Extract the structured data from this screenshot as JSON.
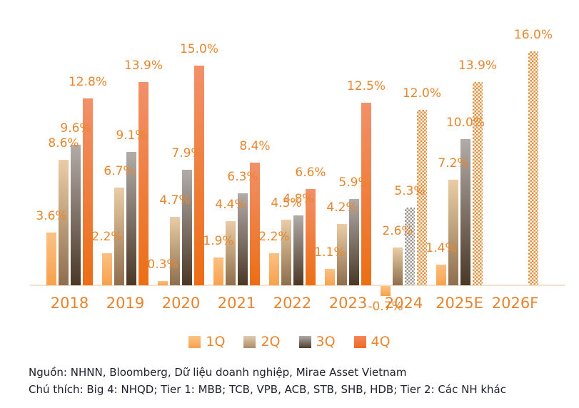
{
  "chart_data": {
    "type": "bar",
    "title": "",
    "xlabel": "",
    "ylabel": "",
    "unit": "%",
    "ylim": [
      -1,
      17
    ],
    "grid": false,
    "legend_position": "bottom",
    "categories": [
      "2018",
      "2019",
      "2020",
      "2021",
      "2022",
      "2023",
      "2024",
      "2025E",
      "2026F"
    ],
    "series": [
      {
        "name": "1Q",
        "values": [
          3.6,
          2.2,
          0.3,
          1.9,
          2.2,
          1.1,
          -0.7,
          1.4,
          null
        ]
      },
      {
        "name": "2Q",
        "values": [
          8.6,
          6.7,
          4.7,
          4.4,
          4.5,
          4.2,
          2.6,
          7.2,
          null
        ]
      },
      {
        "name": "3Q",
        "values": [
          9.6,
          9.1,
          7.9,
          6.3,
          4.8,
          5.9,
          5.3,
          10.0,
          null
        ]
      },
      {
        "name": "4Q",
        "values": [
          12.8,
          13.9,
          15.0,
          8.4,
          6.6,
          12.5,
          12.0,
          13.9,
          16.0
        ]
      }
    ],
    "hatched_bars": [
      {
        "series": "3Q",
        "category": "2024",
        "pattern": "gray-checker"
      },
      {
        "series": "4Q",
        "category": "2024",
        "pattern": "orange-checker"
      },
      {
        "series": "4Q",
        "category": "2025E",
        "pattern": "orange-checker"
      },
      {
        "series": "4Q",
        "category": "2026F",
        "pattern": "orange-checker"
      }
    ]
  },
  "legend": {
    "items": [
      {
        "label": "1Q",
        "color_top": "#FAC584",
        "color_bottom": "#F6A04E"
      },
      {
        "label": "2Q",
        "color_top": "#E2CBAC",
        "color_bottom": "#A98C69"
      },
      {
        "label": "3Q",
        "color_top": "#B0AAA7",
        "color_bottom": "#4E3D2C"
      },
      {
        "label": "4Q",
        "color_top": "#F4875C",
        "color_bottom": "#ED6A20"
      }
    ]
  },
  "footer": {
    "source_line": "Nguồn: NHNN, Bloomberg, Dữ liệu doanh nghiệp, Mirae Asset Vietnam",
    "note_line": "Chú thích: Big 4: NHQD; Tier 1: MBB; TCB, VPB, ACB, STB, SHB, HDB; Tier 2: Các NH khác"
  },
  "colors": {
    "label_orange": "#E8862F",
    "axis_label_orange": "#E8822C",
    "axis_line": "#F9DECA",
    "q1_gradient": [
      "#FBC183",
      "#F8A14C"
    ],
    "q2_gradient": [
      "#EACDA6",
      "#8E6E4C"
    ],
    "q3_gradient": [
      "#B2ABA8",
      "#4A3826"
    ],
    "q4_gradient": [
      "#F2906A",
      "#EC6E14"
    ],
    "checker_orange": "#E2903C",
    "checker_gray": "#9B938B",
    "footer_text": "#20222F"
  }
}
